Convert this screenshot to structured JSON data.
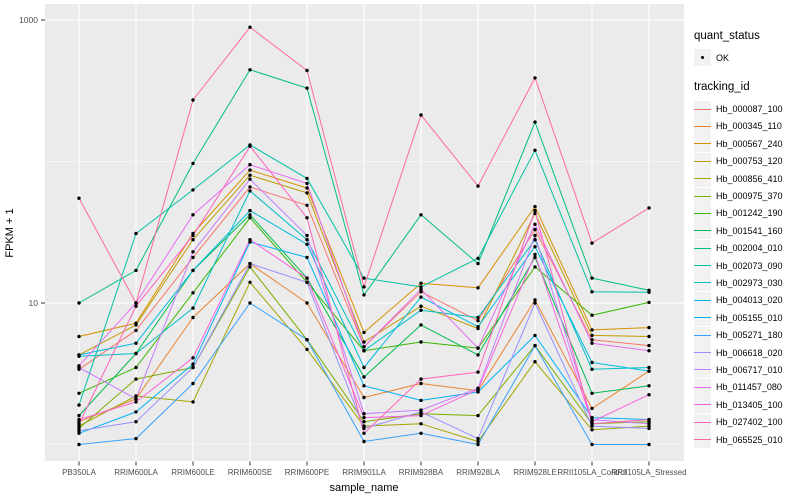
{
  "chart_data": {
    "type": "line",
    "title": "",
    "xlabel": "sample_name",
    "ylabel": "FPKM + 1",
    "y_scale": "log10",
    "ylim": [
      0.75,
      1300
    ],
    "grid": true,
    "y_ticks": [
      {
        "value": 10,
        "label": "10"
      },
      {
        "value": 1000,
        "label": "1000"
      }
    ],
    "y_minor_gridlines": [
      1,
      100
    ],
    "categories": [
      "PB350LA",
      "RRIM600LA",
      "RRIM600LE",
      "RRIM600SE",
      "RRIM600PE",
      "RRIM901LA",
      "RRIM928BA",
      "RRIM928LA",
      "RRIM928LE",
      "RRII105LA_Control",
      "RRII105LA_Stressed"
    ],
    "point_marker": "filled-black-circle",
    "legend": {
      "position": "right",
      "quant_status": {
        "title": "quant_status",
        "items": [
          "OK"
        ]
      },
      "tracking_id": {
        "title": "tracking_id"
      }
    },
    "series": [
      {
        "id": "Hb_000087_100",
        "color": "#F8766D",
        "values": [
          3.4,
          6.4,
          21,
          66,
          49,
          4.9,
          12,
          7.5,
          33,
          5.5,
          5.0
        ]
      },
      {
        "id": "Hb_000345_110",
        "color": "#EA8331",
        "values": [
          1.45,
          2.1,
          7.9,
          19,
          10,
          2.15,
          2.7,
          2.4,
          10.5,
          1.8,
          3.3
        ]
      },
      {
        "id": "Hb_000567_240",
        "color": "#D89000",
        "values": [
          5.8,
          7.2,
          31,
          87,
          65,
          6.2,
          13.8,
          12.8,
          48,
          6.45,
          6.7
        ]
      },
      {
        "id": "Hb_000753_120",
        "color": "#C09B00",
        "values": [
          4.3,
          7.0,
          28,
          80,
          60,
          5.3,
          9.5,
          6.6,
          43,
          5.9,
          5.8
        ]
      },
      {
        "id": "Hb_000856_410",
        "color": "#A3A500",
        "values": [
          1.35,
          2.2,
          2.0,
          14,
          4.7,
          1.35,
          1.4,
          1.05,
          3.85,
          1.27,
          1.35
        ]
      },
      {
        "id": "Hb_000975_370",
        "color": "#7CAE00",
        "values": [
          1.3,
          2.9,
          3.5,
          18,
          5.5,
          1.45,
          1.65,
          1.6,
          5.0,
          1.4,
          1.45
        ]
      },
      {
        "id": "Hb_001242_190",
        "color": "#39B600",
        "values": [
          2.3,
          3.5,
          11.8,
          40,
          14,
          4.6,
          5.3,
          4.8,
          18,
          8.2,
          10.1
        ]
      },
      {
        "id": "Hb_001541_160",
        "color": "#00BB4E",
        "values": [
          1.6,
          4.4,
          17,
          42,
          15,
          3.0,
          7.0,
          4.3,
          21,
          2.3,
          2.6
        ]
      },
      {
        "id": "Hb_002004_010",
        "color": "#00BF7D",
        "values": [
          10,
          17,
          97,
          445,
          330,
          11.4,
          42,
          19,
          190,
          15,
          12.3
        ]
      },
      {
        "id": "Hb_002073_090",
        "color": "#00C1A3",
        "values": [
          1.9,
          31,
          63,
          131,
          76,
          15,
          13,
          20.7,
          120,
          12,
          11.9
        ]
      },
      {
        "id": "Hb_002973_030",
        "color": "#00BFC4",
        "values": [
          4.2,
          4.4,
          9.2,
          62,
          28,
          4.6,
          8.9,
          7.9,
          28,
          3.4,
          3.5
        ]
      },
      {
        "id": "Hb_004013_020",
        "color": "#00BAE0",
        "values": [
          4.3,
          5.2,
          17,
          45,
          26,
          3.5,
          11,
          6.8,
          25,
          3.8,
          3.3
        ]
      },
      {
        "id": "Hb_005155_010",
        "color": "#00B0F6",
        "values": [
          1.2,
          1.7,
          3.7,
          27,
          21,
          2.6,
          2.05,
          2.35,
          5.9,
          1.55,
          1.5
        ]
      },
      {
        "id": "Hb_005271_180",
        "color": "#35A2FF",
        "values": [
          1.0,
          1.1,
          2.7,
          10,
          5.5,
          1.05,
          1.2,
          1.0,
          5.0,
          1.0,
          1.0
        ]
      },
      {
        "id": "Hb_006618_020",
        "color": "#9590FF",
        "values": [
          1.25,
          1.45,
          3.5,
          19,
          14,
          1.3,
          1.7,
          1.1,
          10,
          1.35,
          1.3
        ]
      },
      {
        "id": "Hb_006717_010",
        "color": "#C77CFF",
        "values": [
          3.5,
          2.1,
          23,
          75,
          30,
          1.65,
          1.75,
          2.5,
          30,
          1.5,
          1.4
        ]
      },
      {
        "id": "Hb_011457_080",
        "color": "#E76BF3",
        "values": [
          3.6,
          10,
          42,
          95,
          70,
          4.9,
          12.5,
          4.8,
          36,
          5.2,
          4.6
        ]
      },
      {
        "id": "Hb_013405_100",
        "color": "#FA62DB",
        "values": [
          1.5,
          2.0,
          4.1,
          28,
          15,
          1.55,
          1.6,
          2.45,
          22,
          1.45,
          2.25
        ]
      },
      {
        "id": "Hb_027402_100",
        "color": "#FF62BC",
        "values": [
          1.4,
          9.5,
          30,
          128,
          40,
          1.2,
          2.9,
          3.25,
          45,
          1.4,
          1.5
        ]
      },
      {
        "id": "Hb_065525_010",
        "color": "#FF6A98",
        "values": [
          55,
          10,
          272,
          890,
          440,
          13,
          213,
          67,
          390,
          26.5,
          47
        ]
      }
    ]
  },
  "colors": {
    "panel_bg": "#EBEBEB",
    "gridline": "#FFFFFF",
    "point": "#000000",
    "tick": "#333333",
    "axis_text": "#4D4D4D",
    "axis_title": "#000000",
    "legend_key_bg": "#F2F2F2"
  }
}
